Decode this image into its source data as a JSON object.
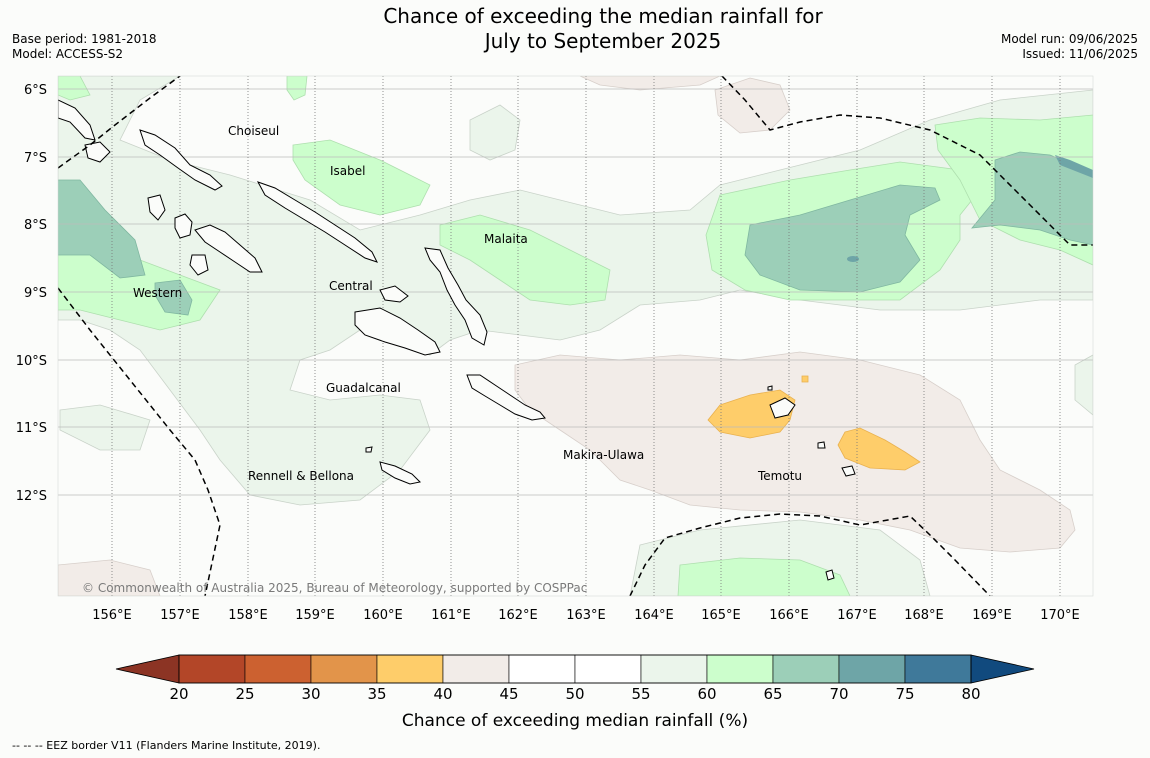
{
  "title": {
    "line1": "Chance of exceeding the median rainfall for",
    "line2": "July to September 2025"
  },
  "meta_left": {
    "base_period": "Base period: 1981-2018",
    "model": "Model: ACCESS-S2"
  },
  "meta_right": {
    "model_run": "Model run: 09/06/2025",
    "issued": "Issued: 11/06/2025"
  },
  "map": {
    "lon_range": [
      155.2,
      170.5
    ],
    "lat_range": [
      -13.5,
      -5.8
    ],
    "lon_ticks": [
      "156°E",
      "157°E",
      "158°E",
      "159°E",
      "160°E",
      "161°E",
      "162°E",
      "163°E",
      "164°E",
      "165°E",
      "166°E",
      "167°E",
      "168°E",
      "169°E",
      "170°E"
    ],
    "lat_ticks": [
      "6°S",
      "7°S",
      "8°S",
      "9°S",
      "10°S",
      "11°S",
      "12°S"
    ],
    "regions": [
      {
        "name": "Choiseul",
        "lon": 157.3,
        "lat": -6.6
      },
      {
        "name": "Isabel",
        "lon": 159.2,
        "lat": -7.2
      },
      {
        "name": "Malaita",
        "lon": 161.2,
        "lat": -8.2
      },
      {
        "name": "Central",
        "lon": 159.5,
        "lat": -8.9
      },
      {
        "name": "Western",
        "lon": 155.9,
        "lat": -9.0
      },
      {
        "name": "Guadalcanal",
        "lon": 159.7,
        "lat": -10.4
      },
      {
        "name": "Makira-Ulawa",
        "lon": 162.8,
        "lat": -11.4
      },
      {
        "name": "Temotu",
        "lon": 165.8,
        "lat": -11.7
      },
      {
        "name": "Rennell & Bellona",
        "lon": 158.0,
        "lat": -11.7
      }
    ],
    "copyright": "© Commonwealth of Australia 2025, Bureau of Meteorology, supported by COSPPac"
  },
  "colorbar": {
    "ticks": [
      "20",
      "25",
      "30",
      "35",
      "40",
      "45",
      "50",
      "55",
      "60",
      "65",
      "70",
      "75",
      "80"
    ],
    "colors": [
      "#b34628",
      "#cc6130",
      "#e2944a",
      "#fecd6a",
      "#f2ece8",
      "#ffffff",
      "#ffffff",
      "#ebf5eb",
      "#ccfecc",
      "#9ccfb8",
      "#6ea5a7",
      "#3f799a"
    ],
    "under_color": "#8c3424",
    "over_color": "#114a7e",
    "label": "Chance of exceeding median rainfall (%)"
  },
  "footnote": "--  --  -- EEZ border V11 (Flanders Marine Institute, 2019)."
}
